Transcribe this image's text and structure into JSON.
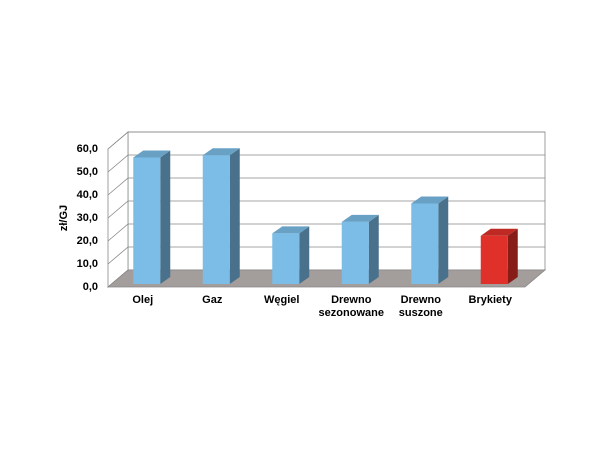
{
  "chart_data": {
    "type": "bar3d",
    "y_label": "zł/GJ",
    "categories": [
      "Olej",
      "Gaz",
      "Węgiel",
      "Drewno sezonowane",
      "Drewno suszone",
      "Brykiety"
    ],
    "values": [
      55,
      56,
      22,
      27,
      35,
      21
    ],
    "colors": [
      "#7cbde8",
      "#7cbde8",
      "#7cbde8",
      "#7cbde8",
      "#7cbde8",
      "#e0302a"
    ],
    "ylim": [
      0,
      60
    ],
    "yticks": [
      {
        "value": 0,
        "label": "0,0"
      },
      {
        "value": 10,
        "label": "10,0"
      },
      {
        "value": 20,
        "label": "20,0"
      },
      {
        "value": 30,
        "label": "30,0"
      },
      {
        "value": 40,
        "label": "40,0"
      },
      {
        "value": 50,
        "label": "50,0"
      },
      {
        "value": 60,
        "label": "60,0"
      }
    ],
    "grid": true
  }
}
